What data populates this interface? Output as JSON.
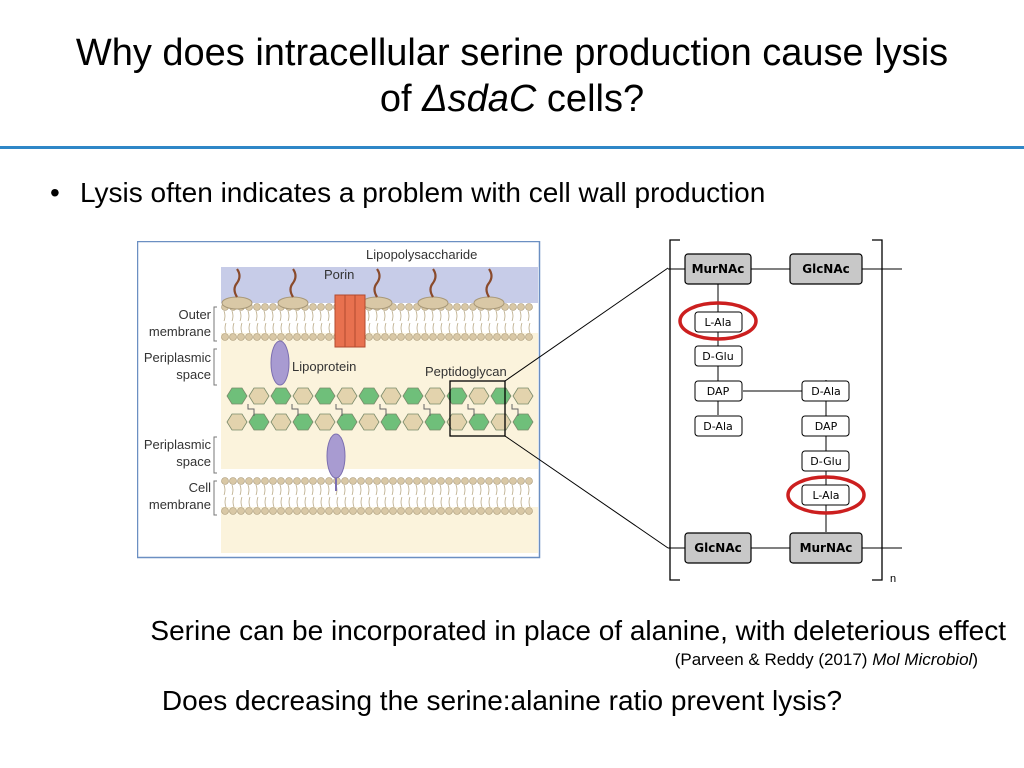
{
  "title": {
    "line1": "Why does intracellular serine production cause lysis",
    "line2_prefix": "of ",
    "line2_italic": "ΔsdaC",
    "line2_suffix": " cells?"
  },
  "bullet": {
    "marker": "•",
    "text": "Lysis often indicates a problem with cell wall production"
  },
  "membrane_figure": {
    "labels": {
      "lipopolysaccharide": "Lipopolysaccharide",
      "porin": "Porin",
      "outer_membrane": [
        "Outer",
        "membrane"
      ],
      "periplasmic_space_1": [
        "Periplasmic",
        "space"
      ],
      "lipoprotein": "Lipoprotein",
      "peptidoglycan": "Peptidoglycan",
      "periplasmic_space_2": [
        "Periplasmic",
        "space"
      ],
      "cell_membrane": [
        "Cell",
        "membrane"
      ]
    },
    "colors": {
      "frame": "#6b8fc2",
      "outer_band": "#c7cce8",
      "periplasm": "#fbf3dc",
      "lipid_head": "#d9c8a6",
      "porin": "#e8714f",
      "lipoprotein": "#a89bd1",
      "glycan_green": "#6fbf7a",
      "glycan_tan": "#e3d3ad"
    }
  },
  "peptide_figure": {
    "top_sugars": [
      "MurNAc",
      "GlcNAc"
    ],
    "bottom_sugars": [
      "GlcNAc",
      "MurNAc"
    ],
    "left_stem": [
      "L-Ala",
      "D-Glu",
      "DAP",
      "D-Ala"
    ],
    "right_stem": [
      "D-Ala",
      "DAP",
      "D-Glu",
      "L-Ala"
    ],
    "subscript": "n",
    "highlight_color": "#cc1f1f",
    "sugar_fill": "#c8c8c8"
  },
  "statement": "Serine can be incorporated in place of alanine, with deleterious effect",
  "citation": {
    "prefix": "(Parveen & Reddy (2017) ",
    "journal": "Mol Microbiol",
    "suffix": ")"
  },
  "question": "Does decreasing the serine:alanine ratio prevent lysis?"
}
